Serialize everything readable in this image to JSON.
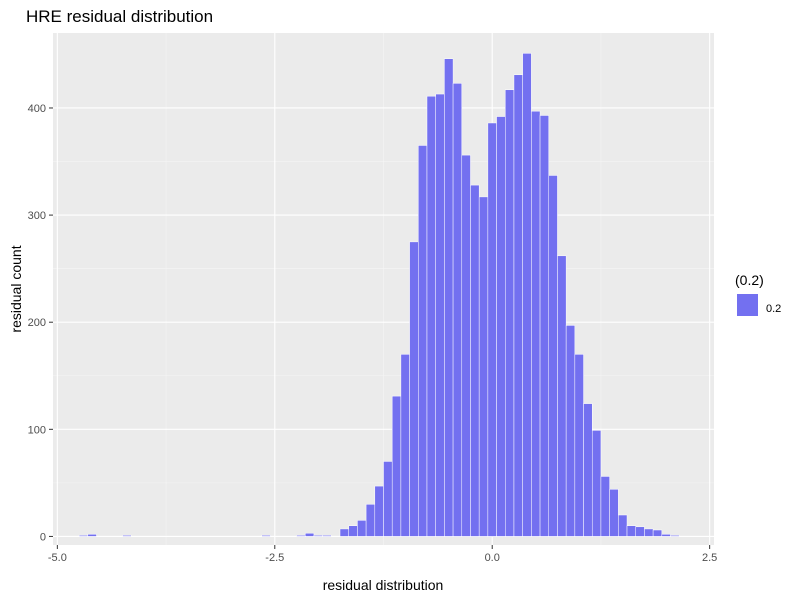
{
  "chart_data": {
    "type": "bar",
    "title": "HRE residual distribution",
    "xlabel": "residual distribution",
    "ylabel": "residual count",
    "xlim": [
      -5.05,
      2.55
    ],
    "ylim": [
      -8,
      470
    ],
    "x_ticks": [
      {
        "value": -5.0,
        "label": "-5.0"
      },
      {
        "value": -2.5,
        "label": "-2.5"
      },
      {
        "value": 0.0,
        "label": "0.0"
      },
      {
        "value": 2.5,
        "label": "2.5"
      }
    ],
    "y_ticks": [
      {
        "value": 0,
        "label": "0"
      },
      {
        "value": 100,
        "label": "100"
      },
      {
        "value": 200,
        "label": "200"
      },
      {
        "value": 300,
        "label": "300"
      },
      {
        "value": 400,
        "label": "400"
      }
    ],
    "grid": true,
    "legend_position": "right",
    "legend_title": "(0.2)",
    "series": [
      {
        "name": "0.2",
        "color": "#7370f0",
        "bin_width": 0.1,
        "x": [
          -4.7,
          -4.6,
          -4.2,
          -2.6,
          -2.2,
          -2.1,
          -2.0,
          -1.9,
          -1.7,
          -1.6,
          -1.5,
          -1.4,
          -1.3,
          -1.2,
          -1.1,
          -1.0,
          -0.9,
          -0.8,
          -0.7,
          -0.6,
          -0.5,
          -0.4,
          -0.3,
          -0.2,
          -0.1,
          0.0,
          0.1,
          0.2,
          0.3,
          0.4,
          0.5,
          0.6,
          0.7,
          0.8,
          0.9,
          1.0,
          1.1,
          1.2,
          1.3,
          1.4,
          1.5,
          1.6,
          1.7,
          1.8,
          1.9,
          2.0,
          2.1
        ],
        "values": [
          1,
          2,
          1,
          1,
          1,
          3,
          1,
          1,
          7,
          10,
          15,
          30,
          47,
          70,
          131,
          170,
          275,
          365,
          411,
          413,
          446,
          423,
          356,
          328,
          317,
          386,
          392,
          417,
          431,
          451,
          397,
          393,
          337,
          262,
          197,
          170,
          124,
          99,
          56,
          44,
          20,
          10,
          9,
          7,
          6,
          2,
          1
        ]
      }
    ]
  }
}
